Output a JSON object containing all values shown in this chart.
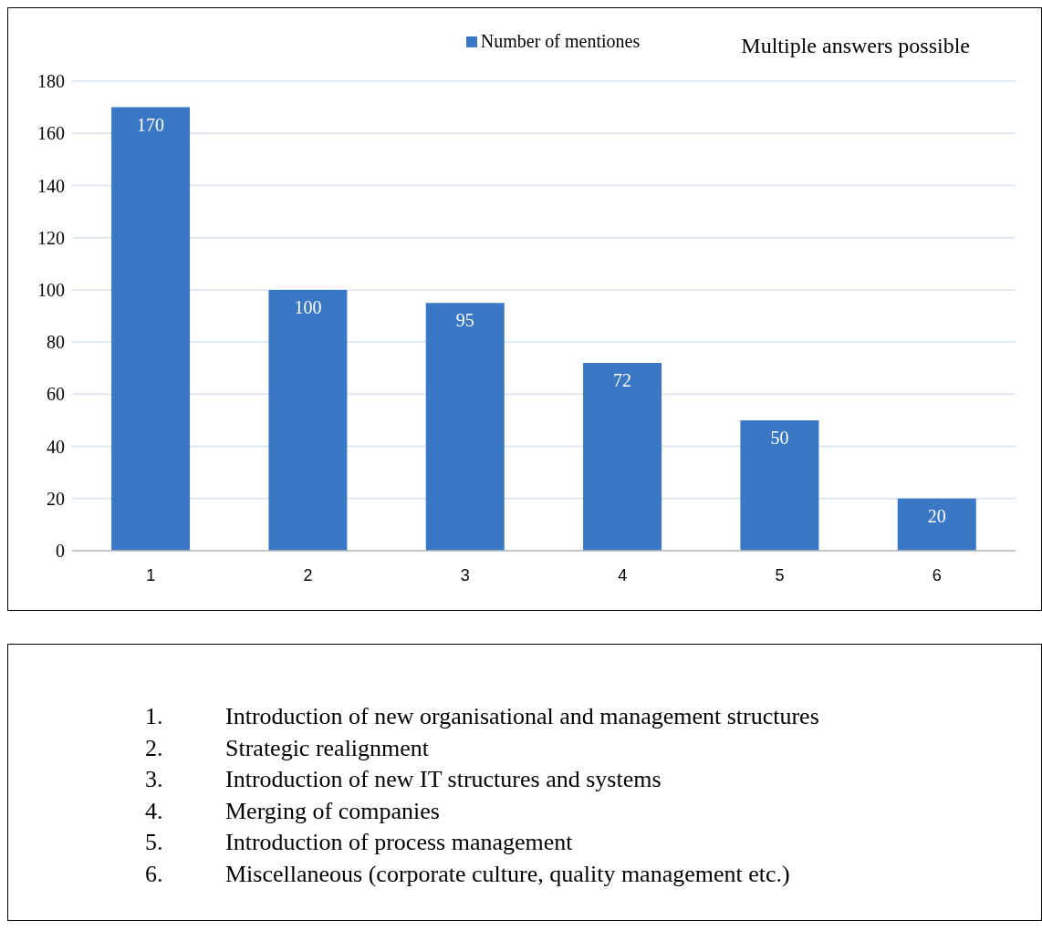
{
  "chart_data": {
    "type": "bar",
    "categories": [
      "1",
      "2",
      "3",
      "4",
      "5",
      "6"
    ],
    "series": [
      {
        "name": "Number of mentiones",
        "color": "#3a78c6",
        "values": [
          170,
          100,
          95,
          72,
          50,
          20
        ]
      }
    ],
    "ylim": [
      0,
      180
    ],
    "yticks": [
      0,
      20,
      40,
      60,
      80,
      100,
      120,
      140,
      160,
      180
    ],
    "grid": "y",
    "legend": "top",
    "data_labels": true,
    "annotations": [
      "Multiple answers possible",
      "1. Introduction of new organisational and management structures",
      "2. Strategic realignment",
      "3. Introduction of new IT structures and systems",
      "4. Merging of companies",
      "5. Introduction of process management",
      "6. Miscellaneous (corporate culture, quality management etc.)"
    ]
  }
}
